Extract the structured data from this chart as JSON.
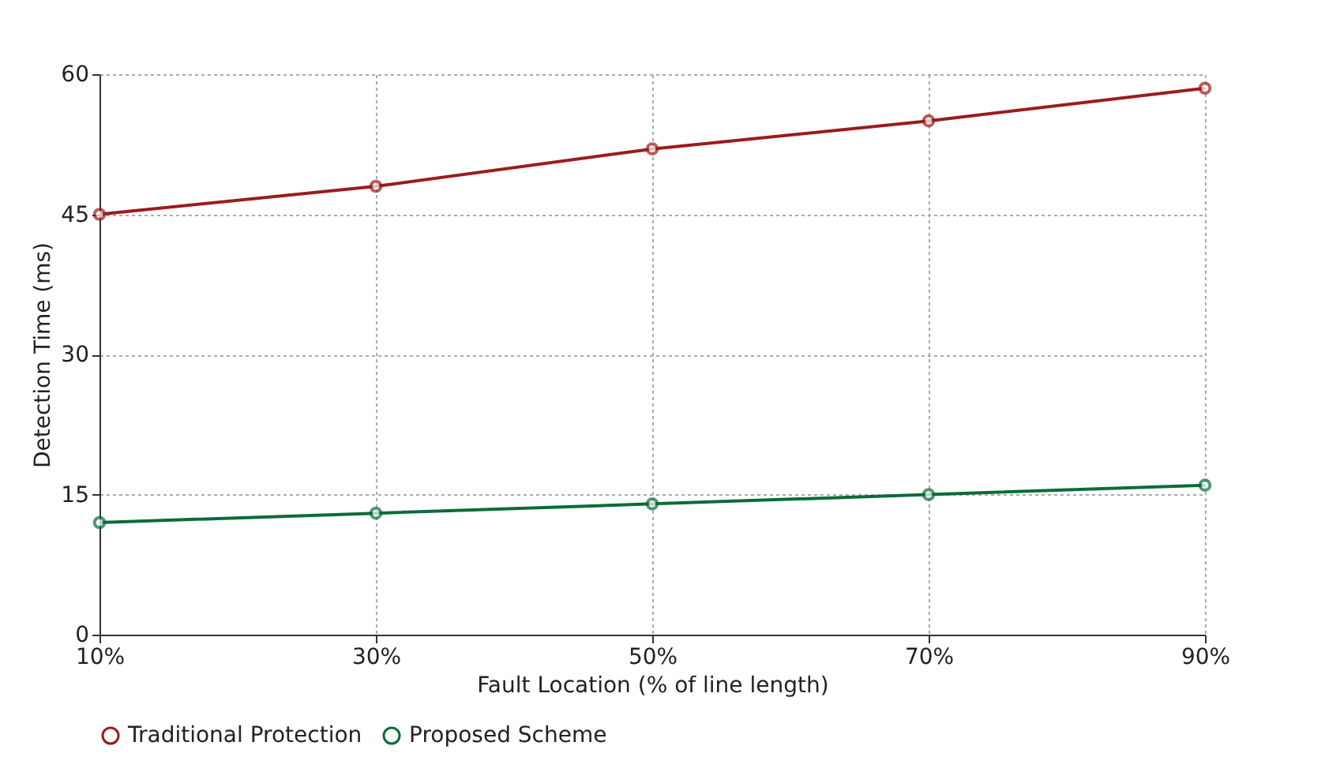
{
  "chart_data": {
    "type": "line",
    "xlabel": "Fault Location (% of line length)",
    "ylabel": "Detection Time (ms)",
    "categories": [
      "10%",
      "30%",
      "50%",
      "70%",
      "90%"
    ],
    "series": [
      {
        "name": "Traditional Protection",
        "color": "#9b1c1c",
        "values": [
          45,
          48,
          52,
          55,
          58.5
        ]
      },
      {
        "name": "Proposed Scheme",
        "color": "#0b6b3a",
        "values": [
          12,
          13,
          14,
          15,
          16
        ]
      }
    ],
    "ylim": [
      0,
      60
    ],
    "yticks": [
      0,
      15,
      30,
      45,
      60
    ],
    "grid": true,
    "legend": "bottom",
    "marker": "circle",
    "line_style": "solid"
  }
}
